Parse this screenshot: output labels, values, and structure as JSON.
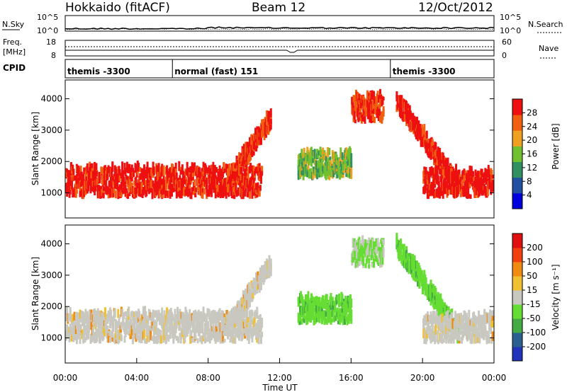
{
  "header": {
    "radar": "Hokkaido (fitACF)",
    "beam": "Beam 12",
    "date": "12/Oct/2012"
  },
  "noise_panel": {
    "left_label": "N.Sky",
    "right_label": "N.Search",
    "left_ticks": [
      "10^5",
      "10^0"
    ],
    "right_ticks": [
      "10^5",
      "10^0"
    ]
  },
  "freq_panel": {
    "left_label_1": "Freq.",
    "left_label_2": "[MHz]",
    "left_ticks": [
      "18",
      "8"
    ],
    "right_label": "Nave",
    "right_ticks": [
      "60",
      "0"
    ]
  },
  "cpid": {
    "label": "CPID",
    "segments": [
      {
        "start_h": 0,
        "end_h": 6,
        "text": "themis -3300"
      },
      {
        "start_h": 6,
        "end_h": 18.2,
        "text": "normal (fast) 151"
      },
      {
        "start_h": 18.2,
        "end_h": 24,
        "text": "themis -3300"
      }
    ]
  },
  "power_panel": {
    "ylabel": "Slant Range [km]",
    "yticks": [
      "1000",
      "2000",
      "3000",
      "4000"
    ],
    "colorbar_label": "Power [dB]",
    "colorbar_ticks": [
      "28",
      "24",
      "20",
      "16",
      "12",
      "8",
      "4"
    ],
    "colors": [
      "#0000dd",
      "#2050a0",
      "#309060",
      "#70c030",
      "#f0a020",
      "#f06010",
      "#ee1010"
    ]
  },
  "velocity_panel": {
    "ylabel": "Slant Range [km]",
    "yticks": [
      "1000",
      "2000",
      "3000",
      "4000"
    ],
    "colorbar_label": "Velocity [m s⁻¹]",
    "colorbar_ticks": [
      "200",
      "100",
      "50",
      "15",
      "-15",
      "-50",
      "-100",
      "-200"
    ],
    "colors": [
      "#2233bb",
      "#2a6090",
      "#44aa44",
      "#66dd33",
      "#c8c8c0",
      "#f0c030",
      "#f08a10",
      "#f04010",
      "#e01010"
    ]
  },
  "xaxis": {
    "label": "Time UT",
    "ticks": [
      "00:00",
      "04:00",
      "08:00",
      "12:00",
      "16:00",
      "20:00",
      "00:00"
    ]
  },
  "chart_data": {
    "type": "heatmap",
    "title": "Hokkaido (fitACF) Beam 12 12/Oct/2012",
    "xlabel": "Time UT",
    "ylabel": "Slant Range [km]",
    "xlim_hours": [
      0,
      24
    ],
    "ylim_km": [
      200,
      4600
    ],
    "power_range_db": [
      0,
      30
    ],
    "velocity_range_ms": [
      -200,
      200
    ],
    "features": [
      {
        "name": "near-range scatter band",
        "t": [
          0,
          11
        ],
        "range_km": [
          800,
          1700
        ],
        "power_db": 26,
        "velocity": "~0 (ground scatter)"
      },
      {
        "name": "rising scatter arc",
        "t": [
          9,
          11.5
        ],
        "range_km": [
          1200,
          3300
        ],
        "power_db": 25,
        "velocity": "~0"
      },
      {
        "name": "mid-range bands",
        "t": [
          13,
          16
        ],
        "range_km": [
          1400,
          2200
        ],
        "power_db": 14,
        "velocity": "+50"
      },
      {
        "name": "far-range patch",
        "t": [
          16,
          17.8
        ],
        "range_km": [
          3200,
          4000
        ],
        "power_db": 24,
        "velocity": "+15"
      },
      {
        "name": "descending arc",
        "t": [
          18.5,
          22
        ],
        "range_km": [
          1000,
          3800
        ],
        "power_db": 26,
        "velocity": "+50"
      },
      {
        "name": "evening band",
        "t": [
          20,
          24
        ],
        "range_km": [
          800,
          1600
        ],
        "power_db": 27,
        "velocity": "~0"
      }
    ]
  }
}
